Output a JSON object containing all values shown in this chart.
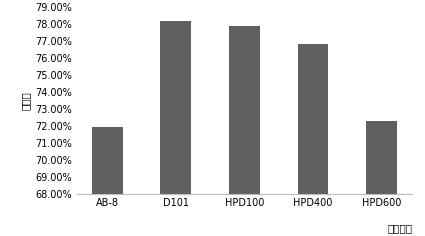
{
  "categories": [
    "AB-8",
    "D101",
    "HPD100",
    "HPD400",
    "HPD600"
  ],
  "values": [
    0.719,
    0.782,
    0.779,
    0.768,
    0.723
  ],
  "bar_color": "#606060",
  "ylim": [
    0.68,
    0.79
  ],
  "yticks": [
    0.68,
    0.69,
    0.7,
    0.71,
    0.72,
    0.73,
    0.74,
    0.75,
    0.76,
    0.77,
    0.78,
    0.79
  ],
  "ylabel": "吸附率",
  "xlabel": "树脂型号",
  "background_color": "#ffffff",
  "bar_width": 0.45,
  "tick_fontsize": 7,
  "label_fontsize": 7.5
}
